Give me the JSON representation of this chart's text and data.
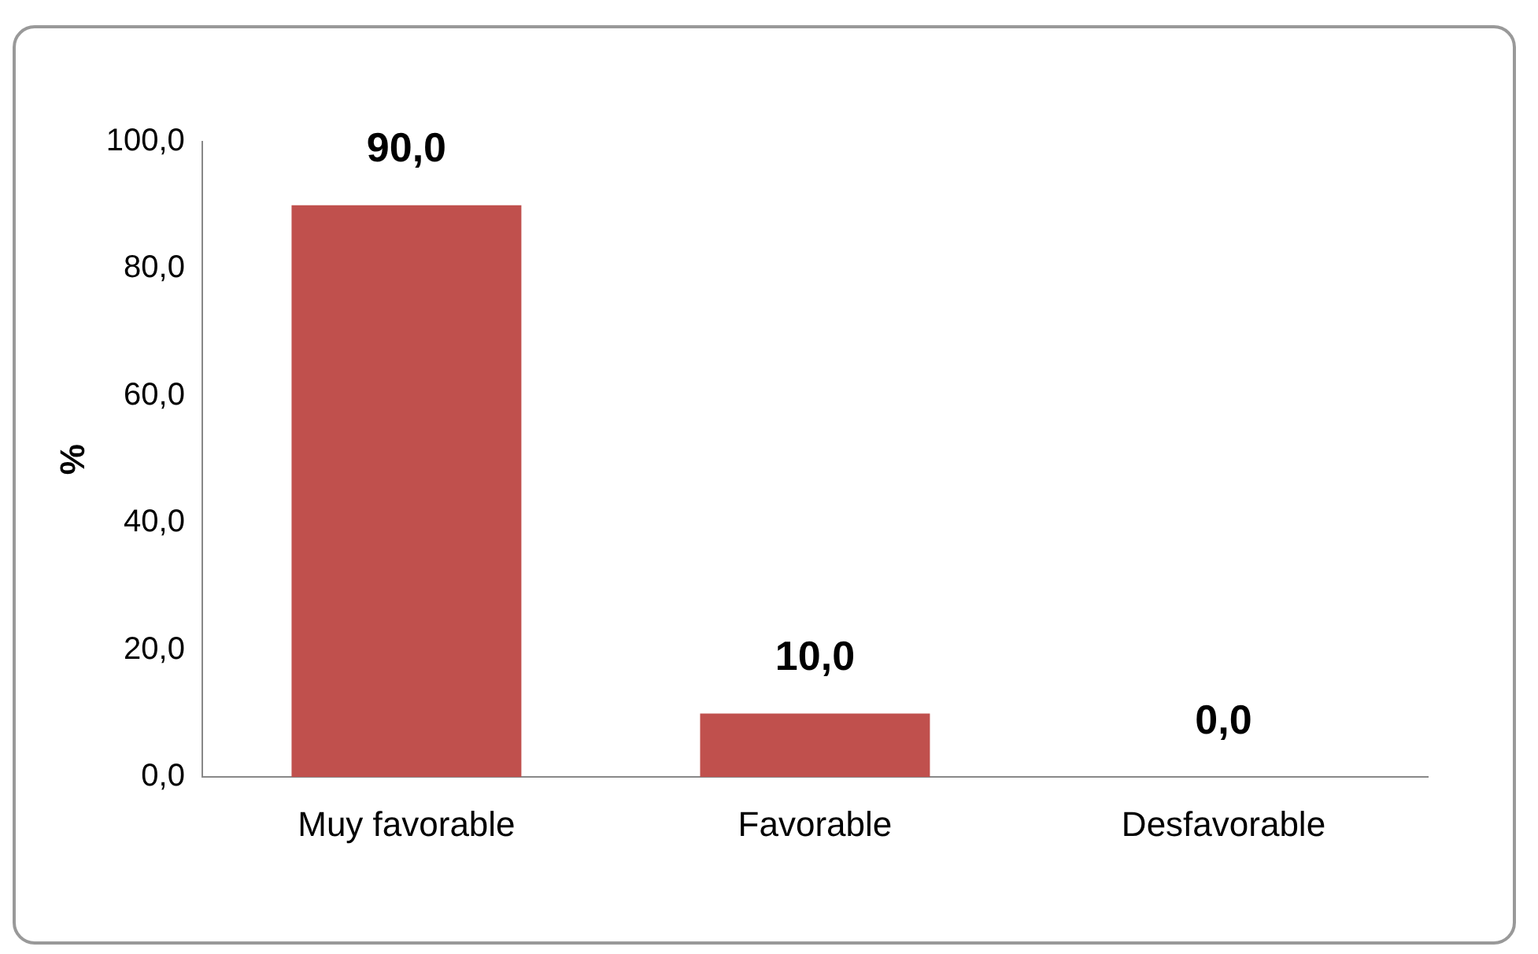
{
  "chart_data": {
    "type": "bar",
    "ylabel": "%",
    "categories": [
      "Muy favorable",
      "Favorable",
      "Desfavorable"
    ],
    "values": [
      90,
      10,
      0
    ],
    "color": "#c0504d",
    "value_labels": [
      "90,0",
      "10,0",
      "0,0"
    ],
    "ylim": [
      0,
      100
    ],
    "yticks": [
      {
        "value": 0,
        "label": "0,0"
      },
      {
        "value": 20,
        "label": "20,0"
      },
      {
        "value": 40,
        "label": "40,0"
      },
      {
        "value": 60,
        "label": "60,0"
      },
      {
        "value": 80,
        "label": "80,0"
      },
      {
        "value": 100,
        "label": "100,0"
      }
    ],
    "grid": false,
    "legend": false
  }
}
